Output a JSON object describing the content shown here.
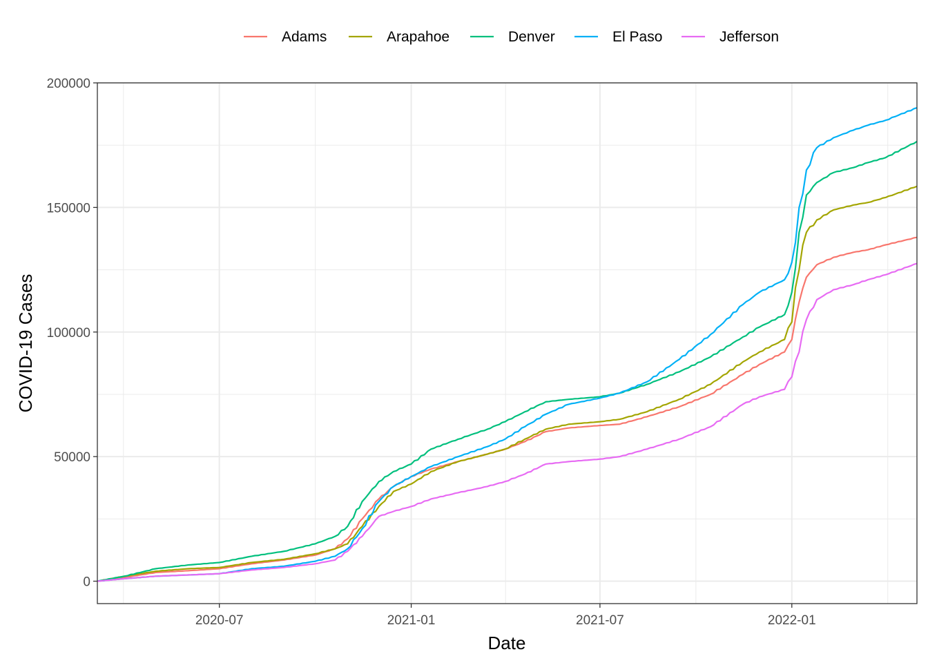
{
  "chart_data": {
    "type": "line",
    "xlabel": "Date",
    "ylabel": "COVID-19 Cases",
    "xlim": [
      "2020-03-06",
      "2022-05-01"
    ],
    "ylim": [
      -9000,
      200000
    ],
    "x_ticks": [
      "2020-07",
      "2021-01",
      "2021-07",
      "2022-01"
    ],
    "x_tick_dates": [
      "2020-07-01",
      "2021-01-01",
      "2021-07-01",
      "2022-01-01"
    ],
    "y_ticks": [
      0,
      50000,
      100000,
      150000,
      200000
    ],
    "y_tick_labels": [
      "0",
      "50000",
      "100000",
      "150000",
      "200000"
    ],
    "legend_position": "top",
    "grid": true,
    "series": [
      {
        "name": "Adams",
        "color": "#F8766D",
        "points": [
          [
            "2020-03-06",
            0
          ],
          [
            "2020-04-01",
            1500
          ],
          [
            "2020-05-01",
            3500
          ],
          [
            "2020-06-01",
            4200
          ],
          [
            "2020-07-01",
            5000
          ],
          [
            "2020-08-01",
            7000
          ],
          [
            "2020-09-01",
            8500
          ],
          [
            "2020-10-01",
            10500
          ],
          [
            "2020-10-20",
            13000
          ],
          [
            "2020-11-01",
            17000
          ],
          [
            "2020-11-15",
            25000
          ],
          [
            "2020-12-01",
            33000
          ],
          [
            "2020-12-15",
            38000
          ],
          [
            "2021-01-01",
            42000
          ],
          [
            "2021-01-20",
            45000
          ],
          [
            "2021-02-15",
            48000
          ],
          [
            "2021-03-15",
            51000
          ],
          [
            "2021-04-01",
            53000
          ],
          [
            "2021-04-20",
            56000
          ],
          [
            "2021-05-10",
            60000
          ],
          [
            "2021-06-01",
            61500
          ],
          [
            "2021-07-01",
            62500
          ],
          [
            "2021-07-20",
            63000
          ],
          [
            "2021-08-15",
            66000
          ],
          [
            "2021-09-15",
            70000
          ],
          [
            "2021-10-15",
            75000
          ],
          [
            "2021-11-15",
            83000
          ],
          [
            "2021-12-01",
            87000
          ],
          [
            "2021-12-25",
            92000
          ],
          [
            "2022-01-01",
            97000
          ],
          [
            "2022-01-08",
            112000
          ],
          [
            "2022-01-15",
            122000
          ],
          [
            "2022-01-25",
            127000
          ],
          [
            "2022-02-10",
            130000
          ],
          [
            "2022-03-01",
            132000
          ],
          [
            "2022-03-15",
            133000
          ],
          [
            "2022-04-01",
            135000
          ],
          [
            "2022-05-01",
            138000
          ]
        ]
      },
      {
        "name": "Arapahoe",
        "color": "#A3A500",
        "points": [
          [
            "2020-03-06",
            0
          ],
          [
            "2020-04-01",
            2000
          ],
          [
            "2020-05-01",
            4000
          ],
          [
            "2020-06-01",
            5000
          ],
          [
            "2020-07-01",
            5500
          ],
          [
            "2020-08-01",
            7500
          ],
          [
            "2020-09-01",
            8800
          ],
          [
            "2020-10-01",
            11000
          ],
          [
            "2020-10-20",
            13000
          ],
          [
            "2020-11-01",
            15000
          ],
          [
            "2020-11-15",
            22000
          ],
          [
            "2020-12-01",
            30000
          ],
          [
            "2020-12-15",
            36000
          ],
          [
            "2021-01-01",
            39000
          ],
          [
            "2021-01-20",
            44000
          ],
          [
            "2021-02-15",
            48000
          ],
          [
            "2021-03-15",
            51000
          ],
          [
            "2021-04-01",
            53000
          ],
          [
            "2021-04-20",
            57000
          ],
          [
            "2021-05-10",
            61000
          ],
          [
            "2021-06-01",
            63000
          ],
          [
            "2021-07-01",
            64000
          ],
          [
            "2021-07-20",
            65000
          ],
          [
            "2021-08-15",
            68000
          ],
          [
            "2021-09-15",
            73000
          ],
          [
            "2021-10-15",
            79000
          ],
          [
            "2021-11-15",
            88000
          ],
          [
            "2021-12-01",
            92000
          ],
          [
            "2021-12-25",
            97000
          ],
          [
            "2022-01-01",
            104000
          ],
          [
            "2022-01-08",
            125000
          ],
          [
            "2022-01-15",
            140000
          ],
          [
            "2022-01-25",
            145000
          ],
          [
            "2022-02-10",
            149000
          ],
          [
            "2022-03-01",
            151000
          ],
          [
            "2022-03-15",
            152000
          ],
          [
            "2022-04-01",
            154000
          ],
          [
            "2022-05-01",
            158500
          ]
        ]
      },
      {
        "name": "Denver",
        "color": "#00BF7D",
        "points": [
          [
            "2020-03-06",
            0
          ],
          [
            "2020-04-01",
            2000
          ],
          [
            "2020-05-01",
            5000
          ],
          [
            "2020-06-01",
            6500
          ],
          [
            "2020-07-01",
            7500
          ],
          [
            "2020-08-01",
            10000
          ],
          [
            "2020-09-01",
            12000
          ],
          [
            "2020-10-01",
            15000
          ],
          [
            "2020-10-20",
            18000
          ],
          [
            "2020-11-01",
            22000
          ],
          [
            "2020-11-15",
            32000
          ],
          [
            "2020-12-01",
            40000
          ],
          [
            "2020-12-15",
            44000
          ],
          [
            "2021-01-01",
            47000
          ],
          [
            "2021-01-20",
            53000
          ],
          [
            "2021-02-15",
            57000
          ],
          [
            "2021-03-15",
            61000
          ],
          [
            "2021-04-01",
            64000
          ],
          [
            "2021-04-20",
            68000
          ],
          [
            "2021-05-10",
            72000
          ],
          [
            "2021-06-01",
            73000
          ],
          [
            "2021-07-01",
            74000
          ],
          [
            "2021-07-20",
            75500
          ],
          [
            "2021-08-15",
            79000
          ],
          [
            "2021-09-15",
            84000
          ],
          [
            "2021-10-15",
            90000
          ],
          [
            "2021-11-15",
            98000
          ],
          [
            "2021-12-01",
            102000
          ],
          [
            "2021-12-25",
            107000
          ],
          [
            "2022-01-01",
            116000
          ],
          [
            "2022-01-08",
            140000
          ],
          [
            "2022-01-15",
            155000
          ],
          [
            "2022-01-25",
            160000
          ],
          [
            "2022-02-10",
            164000
          ],
          [
            "2022-03-01",
            166000
          ],
          [
            "2022-03-15",
            168000
          ],
          [
            "2022-04-01",
            170000
          ],
          [
            "2022-05-01",
            176500
          ]
        ]
      },
      {
        "name": "El Paso",
        "color": "#00B0F6",
        "points": [
          [
            "2020-03-06",
            0
          ],
          [
            "2020-04-01",
            1000
          ],
          [
            "2020-05-01",
            2000
          ],
          [
            "2020-06-01",
            2500
          ],
          [
            "2020-07-01",
            3000
          ],
          [
            "2020-08-01",
            5000
          ],
          [
            "2020-09-01",
            6000
          ],
          [
            "2020-10-01",
            8000
          ],
          [
            "2020-10-20",
            10000
          ],
          [
            "2020-11-01",
            13000
          ],
          [
            "2020-11-15",
            21000
          ],
          [
            "2020-12-01",
            32000
          ],
          [
            "2020-12-15",
            38000
          ],
          [
            "2021-01-01",
            42000
          ],
          [
            "2021-01-20",
            46000
          ],
          [
            "2021-02-15",
            50000
          ],
          [
            "2021-03-15",
            54000
          ],
          [
            "2021-04-01",
            57000
          ],
          [
            "2021-04-20",
            62000
          ],
          [
            "2021-05-10",
            67000
          ],
          [
            "2021-06-01",
            71000
          ],
          [
            "2021-07-01",
            73500
          ],
          [
            "2021-07-20",
            75500
          ],
          [
            "2021-08-15",
            80000
          ],
          [
            "2021-09-15",
            89000
          ],
          [
            "2021-10-15",
            99000
          ],
          [
            "2021-11-15",
            111000
          ],
          [
            "2021-12-01",
            116000
          ],
          [
            "2021-12-25",
            121000
          ],
          [
            "2022-01-01",
            128000
          ],
          [
            "2022-01-08",
            150000
          ],
          [
            "2022-01-15",
            165000
          ],
          [
            "2022-01-25",
            174000
          ],
          [
            "2022-02-10",
            178000
          ],
          [
            "2022-03-01",
            181000
          ],
          [
            "2022-03-15",
            183000
          ],
          [
            "2022-04-01",
            185000
          ],
          [
            "2022-05-01",
            190000
          ]
        ]
      },
      {
        "name": "Jefferson",
        "color": "#E76BF3",
        "points": [
          [
            "2020-03-06",
            0
          ],
          [
            "2020-04-01",
            1000
          ],
          [
            "2020-05-01",
            2000
          ],
          [
            "2020-06-01",
            2500
          ],
          [
            "2020-07-01",
            3000
          ],
          [
            "2020-08-01",
            4500
          ],
          [
            "2020-09-01",
            5500
          ],
          [
            "2020-10-01",
            7000
          ],
          [
            "2020-10-20",
            8500
          ],
          [
            "2020-11-01",
            12000
          ],
          [
            "2020-11-15",
            18000
          ],
          [
            "2020-12-01",
            26000
          ],
          [
            "2020-12-15",
            28000
          ],
          [
            "2021-01-01",
            30000
          ],
          [
            "2021-01-20",
            33000
          ],
          [
            "2021-02-15",
            35500
          ],
          [
            "2021-03-15",
            38000
          ],
          [
            "2021-04-01",
            40000
          ],
          [
            "2021-04-20",
            43000
          ],
          [
            "2021-05-10",
            47000
          ],
          [
            "2021-06-01",
            48000
          ],
          [
            "2021-07-01",
            49000
          ],
          [
            "2021-07-20",
            50000
          ],
          [
            "2021-08-15",
            53000
          ],
          [
            "2021-09-15",
            57000
          ],
          [
            "2021-10-15",
            62000
          ],
          [
            "2021-11-15",
            71000
          ],
          [
            "2021-12-01",
            74000
          ],
          [
            "2021-12-25",
            77000
          ],
          [
            "2022-01-01",
            82000
          ],
          [
            "2022-01-08",
            92000
          ],
          [
            "2022-01-15",
            105000
          ],
          [
            "2022-01-25",
            113000
          ],
          [
            "2022-02-10",
            117000
          ],
          [
            "2022-03-01",
            119000
          ],
          [
            "2022-03-15",
            121000
          ],
          [
            "2022-04-01",
            123000
          ],
          [
            "2022-05-01",
            127500
          ]
        ]
      }
    ]
  }
}
